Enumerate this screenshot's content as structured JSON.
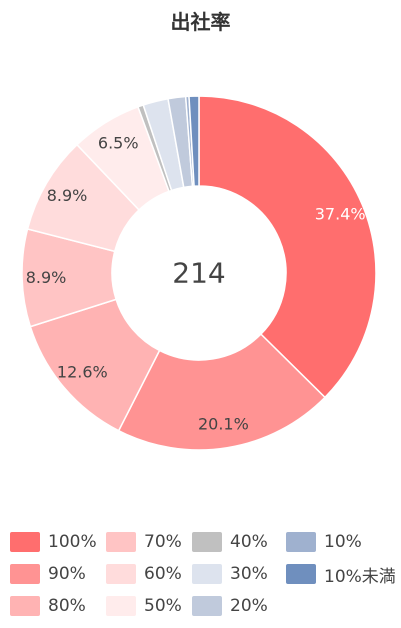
{
  "chart_data": {
    "type": "pie",
    "variant": "donut",
    "title": "出社率",
    "center_label": "214",
    "slices": [
      {
        "label": "100%",
        "value": 37.4,
        "display": "37.4%",
        "color": "#ff6e6e"
      },
      {
        "label": "90%",
        "value": 20.1,
        "display": "20.1%",
        "color": "#ff9393"
      },
      {
        "label": "80%",
        "value": 12.6,
        "display": "12.6%",
        "color": "#ffb3b3"
      },
      {
        "label": "70%",
        "value": 8.9,
        "display": "8.9%",
        "color": "#ffc4c4"
      },
      {
        "label": "60%",
        "value": 8.9,
        "display": "8.9%",
        "color": "#ffdcdc"
      },
      {
        "label": "50%",
        "value": 6.5,
        "display": "6.5%",
        "color": "#ffecec"
      },
      {
        "label": "40%",
        "value": 0.5,
        "display": "",
        "color": "#c0c0c0"
      },
      {
        "label": "30%",
        "value": 2.3,
        "display": "",
        "color": "#dde3ee"
      },
      {
        "label": "20%",
        "value": 1.6,
        "display": "",
        "color": "#c0cadc"
      },
      {
        "label": "10%",
        "value": 0.3,
        "display": "",
        "color": "#9fb1cf"
      },
      {
        "label": "10%未満",
        "value": 0.9,
        "display": "",
        "color": "#6f8fbe"
      }
    ],
    "legend_placement": "bottom",
    "legend_order": [
      "100%",
      "90%",
      "80%",
      "70%",
      "60%",
      "50%",
      "40%",
      "30%",
      "20%",
      "10%",
      "10%未満"
    ]
  }
}
